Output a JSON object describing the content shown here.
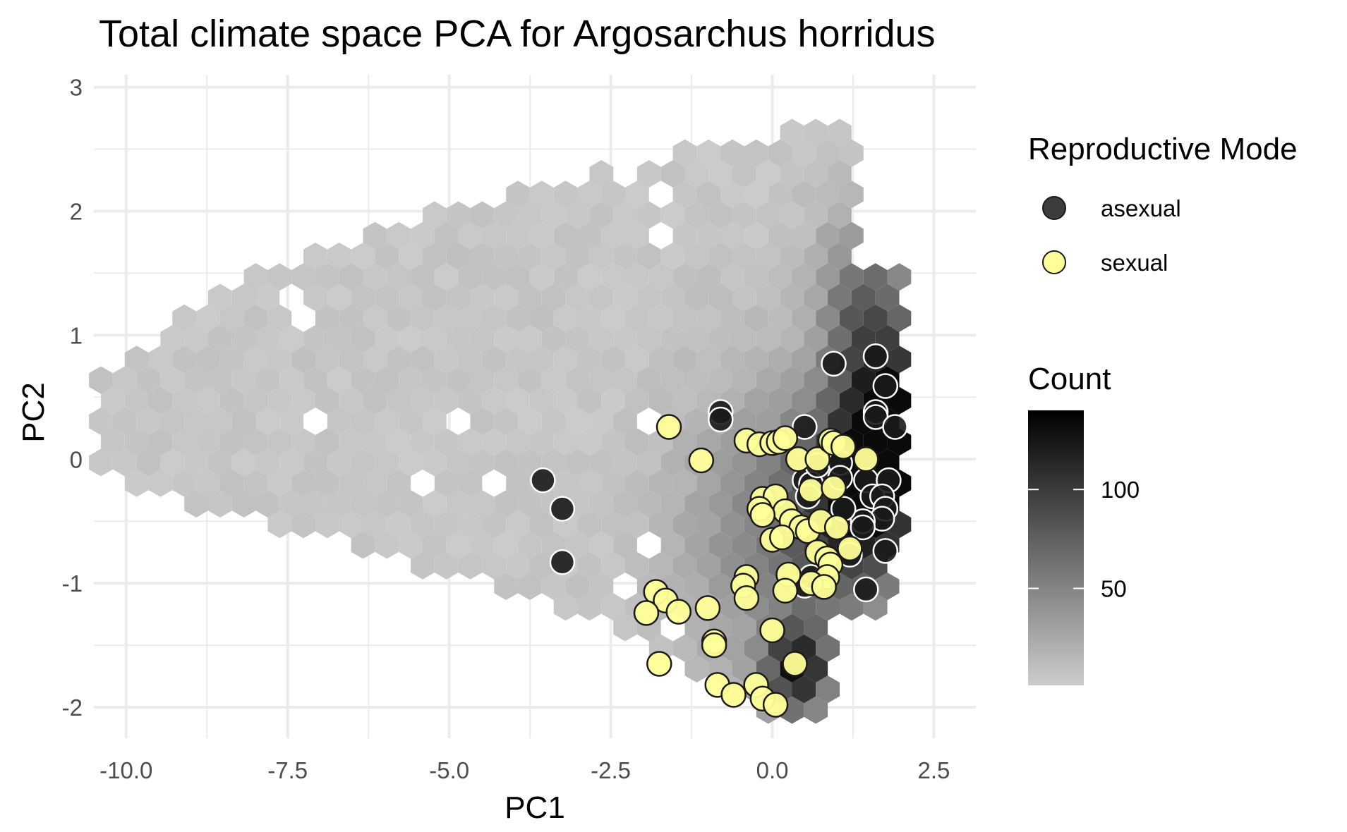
{
  "chart_data": {
    "type": "scatter",
    "layers": [
      "hexbin",
      "points"
    ],
    "title": "Total climate space PCA for Argosarchus horridus",
    "xlabel": "PC1",
    "ylabel": "PC2",
    "xlim": [
      -10.5,
      3.15
    ],
    "ylim": [
      -2.25,
      3.1
    ],
    "x_ticks": [
      -10,
      -7.5,
      -5,
      -2.5,
      0,
      2.5
    ],
    "x_tick_labels": [
      "-10.0",
      "-7.5",
      "-5.0",
      "-2.5",
      "0.0",
      "2.5"
    ],
    "y_ticks": [
      -2,
      -1,
      0,
      1,
      2,
      3
    ],
    "y_tick_labels": [
      "-2",
      "-1",
      "0",
      "1",
      "2",
      "3"
    ],
    "grid": true,
    "legend_placement": "right",
    "legend_points_title": "Reproductive Mode",
    "legend_count_title": "Count",
    "count_scale": {
      "min": 1,
      "max": 140,
      "breaks": [
        50,
        100
      ],
      "break_labels": [
        "50",
        "100"
      ],
      "low_color": "#cccccc",
      "high_color": "#000000"
    },
    "series": [
      {
        "name": "asexual",
        "color": "#1a1a1a",
        "points": [
          [
            -3.55,
            -0.17
          ],
          [
            -3.25,
            -0.4
          ],
          [
            -3.25,
            -0.83
          ],
          [
            -0.8,
            0.38
          ],
          [
            -0.8,
            0.32
          ],
          [
            0.5,
            0.26
          ],
          [
            0.95,
            0.77
          ],
          [
            1.6,
            0.83
          ],
          [
            1.75,
            0.59
          ],
          [
            1.6,
            0.38
          ],
          [
            1.6,
            0.34
          ],
          [
            1.9,
            0.26
          ],
          [
            0.5,
            -0.17
          ],
          [
            0.6,
            -0.2
          ],
          [
            0.7,
            -0.05
          ],
          [
            0.55,
            -0.3
          ],
          [
            1.05,
            -0.03
          ],
          [
            1.05,
            -0.15
          ],
          [
            1.45,
            -0.17
          ],
          [
            1.55,
            -0.3
          ],
          [
            1.8,
            -0.17
          ],
          [
            1.7,
            -0.3
          ],
          [
            1.75,
            -0.4
          ],
          [
            1.7,
            -0.48
          ],
          [
            1.4,
            -0.5
          ],
          [
            1.4,
            -0.55
          ],
          [
            1.1,
            -0.4
          ],
          [
            1.2,
            -0.77
          ],
          [
            1.75,
            -0.74
          ],
          [
            1.45,
            -1.05
          ],
          [
            0.85,
            -0.93
          ],
          [
            0.5,
            -1.02
          ],
          [
            0.6,
            -0.95
          ]
        ]
      },
      {
        "name": "sexual",
        "color": "#ffff99",
        "points": [
          [
            -1.6,
            0.26
          ],
          [
            -1.1,
            -0.01
          ],
          [
            -0.4,
            0.15
          ],
          [
            -0.2,
            0.12
          ],
          [
            0.0,
            0.13
          ],
          [
            0.1,
            0.14
          ],
          [
            0.2,
            0.17
          ],
          [
            0.4,
            0.0
          ],
          [
            0.7,
            0.0
          ],
          [
            0.9,
            0.15
          ],
          [
            0.95,
            0.13
          ],
          [
            1.1,
            0.1
          ],
          [
            1.45,
            0.0
          ],
          [
            -0.15,
            -0.32
          ],
          [
            0.05,
            -0.3
          ],
          [
            -0.2,
            -0.4
          ],
          [
            0.2,
            -0.42
          ],
          [
            -0.15,
            -0.45
          ],
          [
            0.3,
            -0.5
          ],
          [
            0.45,
            -0.55
          ],
          [
            0.55,
            -0.58
          ],
          [
            0.75,
            -0.5
          ],
          [
            1.0,
            -0.55
          ],
          [
            0.6,
            -0.25
          ],
          [
            0.95,
            -0.23
          ],
          [
            0.0,
            -0.65
          ],
          [
            0.15,
            -0.63
          ],
          [
            0.7,
            -0.75
          ],
          [
            0.85,
            -0.8
          ],
          [
            0.9,
            -0.85
          ],
          [
            1.2,
            -0.72
          ],
          [
            0.85,
            -0.95
          ],
          [
            0.6,
            -1.0
          ],
          [
            0.8,
            -1.03
          ],
          [
            0.25,
            -0.93
          ],
          [
            0.2,
            -1.06
          ],
          [
            -0.4,
            -0.95
          ],
          [
            -0.45,
            -1.02
          ],
          [
            -0.4,
            -1.12
          ],
          [
            -1.8,
            -1.07
          ],
          [
            -1.65,
            -1.14
          ],
          [
            -1.45,
            -1.23
          ],
          [
            -1.95,
            -1.24
          ],
          [
            -1.0,
            -1.2
          ],
          [
            -0.9,
            -1.47
          ],
          [
            -0.9,
            -1.5
          ],
          [
            0.0,
            -1.38
          ],
          [
            -1.75,
            -1.65
          ],
          [
            0.35,
            -1.65
          ],
          [
            -0.85,
            -1.82
          ],
          [
            -0.6,
            -1.9
          ],
          [
            -0.25,
            -1.82
          ],
          [
            -0.15,
            -1.93
          ],
          [
            0.05,
            -1.98
          ]
        ]
      }
    ]
  }
}
